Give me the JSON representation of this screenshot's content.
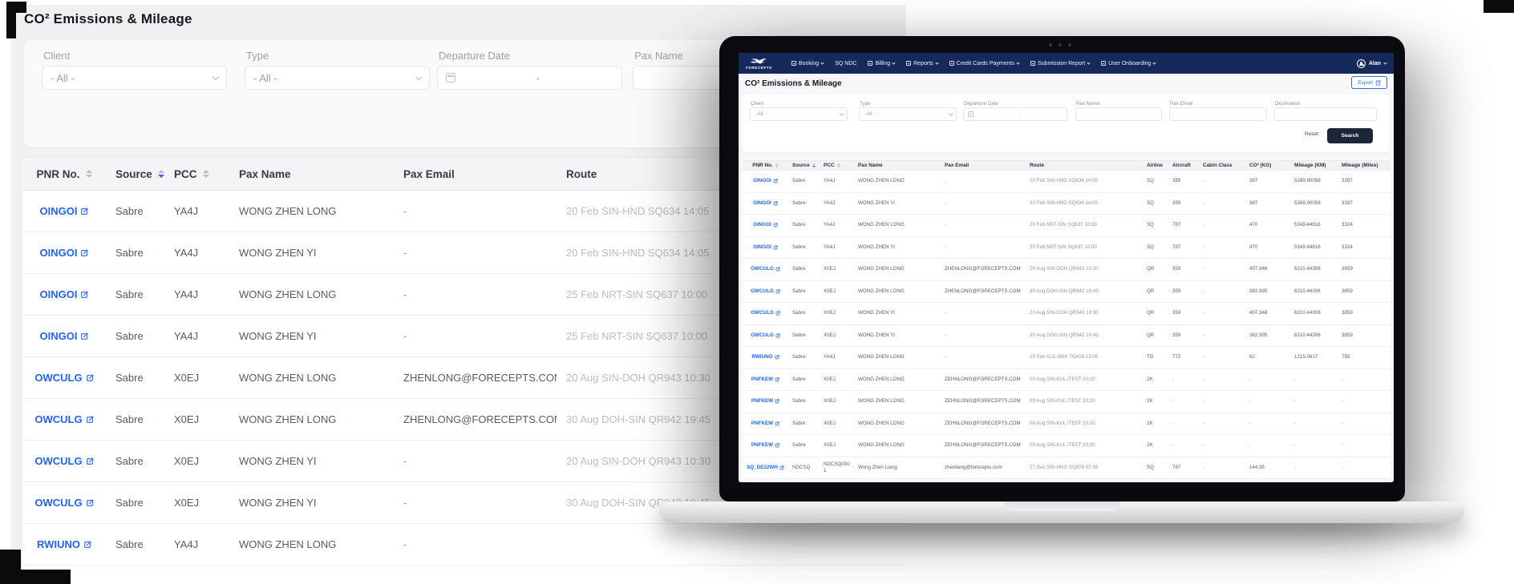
{
  "colors": {
    "accent_blue": "#2563eb",
    "navbar_navy": "#16295c",
    "search_button": "#1d2538",
    "left_page_bg": "#f0f0f2"
  },
  "left_view": {
    "title": "CO² Emissions & Mileage",
    "filters": {
      "client": {
        "label": "Client",
        "value": "- All -"
      },
      "type": {
        "label": "Type",
        "value": "- All -"
      },
      "departure_date": {
        "label": "Departure Date",
        "value": "-"
      },
      "pax_name": {
        "label": "Pax Name",
        "value": ""
      }
    },
    "table": {
      "headers": [
        {
          "label": "PNR No.",
          "sortable": true
        },
        {
          "label": "Source",
          "sortable": true,
          "active": "down"
        },
        {
          "label": "PCC",
          "sortable": true
        },
        {
          "label": "Pax Name"
        },
        {
          "label": "Pax Email"
        },
        {
          "label": "Route"
        }
      ],
      "rows": [
        [
          "OINGOI",
          "Sabre",
          "YA4J",
          "WONG ZHEN LONG",
          "-",
          "20 Feb SIN-HND SQ634 14:05"
        ],
        [
          "OINGOI",
          "Sabre",
          "YA4J",
          "WONG ZHEN YI",
          "-",
          "20 Feb SIN-HND SQ634 14:05"
        ],
        [
          "OINGOI",
          "Sabre",
          "YA4J",
          "WONG ZHEN LONG",
          "-",
          "25 Feb NRT-SIN SQ637 10:00"
        ],
        [
          "OINGOI",
          "Sabre",
          "YA4J",
          "WONG ZHEN YI",
          "-",
          "25 Feb NRT-SIN SQ637 10:00"
        ],
        [
          "OWCULG",
          "Sabre",
          "X0EJ",
          "WONG ZHEN LONG",
          "ZHENLONG@FORECEPTS.COM",
          "20 Aug SIN-DOH QR943 10:30"
        ],
        [
          "OWCULG",
          "Sabre",
          "X0EJ",
          "WONG ZHEN LONG",
          "ZHENLONG@FORECEPTS.COM",
          "30 Aug DOH-SIN QR942 19:45"
        ],
        [
          "OWCULG",
          "Sabre",
          "X0EJ",
          "WONG ZHEN YI",
          "-",
          "20 Aug SIN-DOH QR943 10:30"
        ],
        [
          "OWCULG",
          "Sabre",
          "X0EJ",
          "WONG ZHEN YI",
          "-",
          "30 Aug DOH-SIN QR942 19:45"
        ],
        [
          "RWIUNO",
          "Sabre",
          "YA4J",
          "WONG ZHEN LONG",
          "-",
          ""
        ],
        [
          "",
          "",
          "",
          "",
          "",
          ""
        ]
      ]
    }
  },
  "laptop": {
    "navbar": {
      "brand": "FORECEPTS",
      "items": [
        {
          "label": "Booking",
          "icon": "booking-icon",
          "chevron": true
        },
        {
          "label": "SQ NDC",
          "icon": null,
          "chevron": false
        },
        {
          "label": "Billing",
          "icon": "billing-icon",
          "chevron": true
        },
        {
          "label": "Reports",
          "icon": "reports-icon",
          "chevron": true
        },
        {
          "label": "Credit Cards Payments",
          "icon": "credit-cards-icon",
          "chevron": true
        },
        {
          "label": "Submission Report",
          "icon": "submission-report-icon",
          "chevron": true
        },
        {
          "label": "User Onboarding",
          "icon": "user-onboarding-icon",
          "chevron": true
        }
      ],
      "user": {
        "name": "Alan"
      }
    },
    "page_title": "CO² Emissions & Mileage",
    "export_label": "Export",
    "filters": {
      "client": {
        "label": "Client",
        "value": "- All -"
      },
      "type": {
        "label": "Type",
        "value": "- All -"
      },
      "departure_date": {
        "label": "Departure Date",
        "value": "-"
      },
      "pax_name": {
        "label": "Pax Name",
        "value": ""
      },
      "pax_email": {
        "label": "Pax Email",
        "value": ""
      },
      "destination": {
        "label": "Destination",
        "value": ""
      },
      "reset_label": "Reset",
      "search_label": "Search"
    },
    "table": {
      "headers": [
        {
          "label": "PNR No.",
          "sortable": true
        },
        {
          "label": "Source",
          "sortable": true,
          "active": "down"
        },
        {
          "label": "PCC",
          "sortable": true
        },
        {
          "label": "Pax Name"
        },
        {
          "label": "Pax Email"
        },
        {
          "label": "Route"
        },
        {
          "label": "Airline"
        },
        {
          "label": "Aircraft"
        },
        {
          "label": "Cabin Class"
        },
        {
          "label": "CO² (KG)"
        },
        {
          "label": "Mileage (KM)"
        },
        {
          "label": "Mileage (Miles)"
        }
      ],
      "rows": [
        [
          "OINGOI",
          "Sabre",
          "YA4J",
          "WONG ZHEN LONG",
          "-",
          "20 Feb SIN-HND SQ634 14:05",
          "SQ",
          "359",
          "-",
          "387",
          "5289.90058",
          "3287"
        ],
        [
          "OINGOI",
          "Sabre",
          "YA4J",
          "WONG ZHEN YI",
          "-",
          "20 Feb SIN-HND SQ634 14:05",
          "SQ",
          "359",
          "-",
          "387",
          "5289.90058",
          "3287"
        ],
        [
          "OINGOI",
          "Sabre",
          "YA4J",
          "WONG ZHEN LONG",
          "-",
          "25 Feb NRT-SIN SQ637 10:00",
          "SQ",
          "787",
          "-",
          "470",
          "5349.44816",
          "3324"
        ],
        [
          "OINGOI",
          "Sabre",
          "YA4J",
          "WONG ZHEN YI",
          "-",
          "25 Feb NRT-SIN SQ637 10:00",
          "SQ",
          "787",
          "-",
          "470",
          "5349.44816",
          "3324"
        ],
        [
          "OWCULG",
          "Sabre",
          "X0EJ",
          "WONG ZHEN LONG",
          "ZHENLONG@FORECEPTS.COM",
          "20 Aug SIN-DOH QR943 10:30",
          "QR",
          "359",
          "-",
          "407.348",
          "6210.44306",
          "3859"
        ],
        [
          "OWCULG",
          "Sabre",
          "X0EJ",
          "WONG ZHEN LONG",
          "ZHENLONG@FORECEPTS.COM",
          "30 Aug DOH-SIN QR942 19:45",
          "QR",
          "359",
          "-",
          "382.995",
          "6210.44306",
          "3859"
        ],
        [
          "OWCULG",
          "Sabre",
          "X0EJ",
          "WONG ZHEN YI",
          "-",
          "20 Aug SIN-DOH QR943 10:30",
          "QR",
          "359",
          "-",
          "407.348",
          "6210.44306",
          "3859"
        ],
        [
          "OWCULG",
          "Sabre",
          "X0EJ",
          "WONG ZHEN YI",
          "-",
          "30 Aug DOH-SIN QR942 19:45",
          "QR",
          "359",
          "-",
          "382.995",
          "6210.44306",
          "3859"
        ],
        [
          "RWIUNO",
          "Sabre",
          "YA4J",
          "WONG ZHEN LONG",
          "-",
          "15 Feb KUL-BKK TG416 13:05",
          "TG",
          "772",
          "-",
          "92",
          "1215.0617",
          "755"
        ],
        [
          "PNFKEW",
          "Sabre",
          "X0EJ",
          "WONG ZHEN LONG",
          "ZEHNLONG@FORECEPTS.COM",
          "09 Aug SIN-KUL /TEST 20:20",
          "2K",
          "-",
          "-",
          "-",
          "-",
          "-"
        ],
        [
          "PNFKEW",
          "Sabre",
          "X0EJ",
          "WONG ZHEN LONG",
          "ZEHNLONG@FORECEPTS.COM",
          "09 Aug SIN-KUL /TEST 20:20",
          "2K",
          "-",
          "-",
          "-",
          "-",
          "-"
        ],
        [
          "PNFKEW",
          "Sabre",
          "X0EJ",
          "WONG ZHEN LONG",
          "ZEHNLONG@FORECEPTS.COM",
          "06 Aug SIN-KUL /TEST 20:20",
          "2K",
          "-",
          "-",
          "-",
          "-",
          "-"
        ],
        [
          "PNFKEW",
          "Sabre",
          "X0EJ",
          "WONG ZHEN LONG",
          "ZEHNLONG@FORECEPTS.COM",
          "09 Aug SIN-KUL /TEST 20:20",
          "2K",
          "-",
          "-",
          "-",
          "-",
          "-"
        ],
        [
          "SQ_DE22WH",
          "NDCSQ",
          "NDCSQ0001",
          "Wong Zhen Liang",
          "zhenliang@forecepts.com",
          "27 Dec SIN-HKG SQ876 07:35",
          "SQ",
          "787",
          "-",
          "144.35",
          "-",
          "-"
        ]
      ]
    }
  }
}
